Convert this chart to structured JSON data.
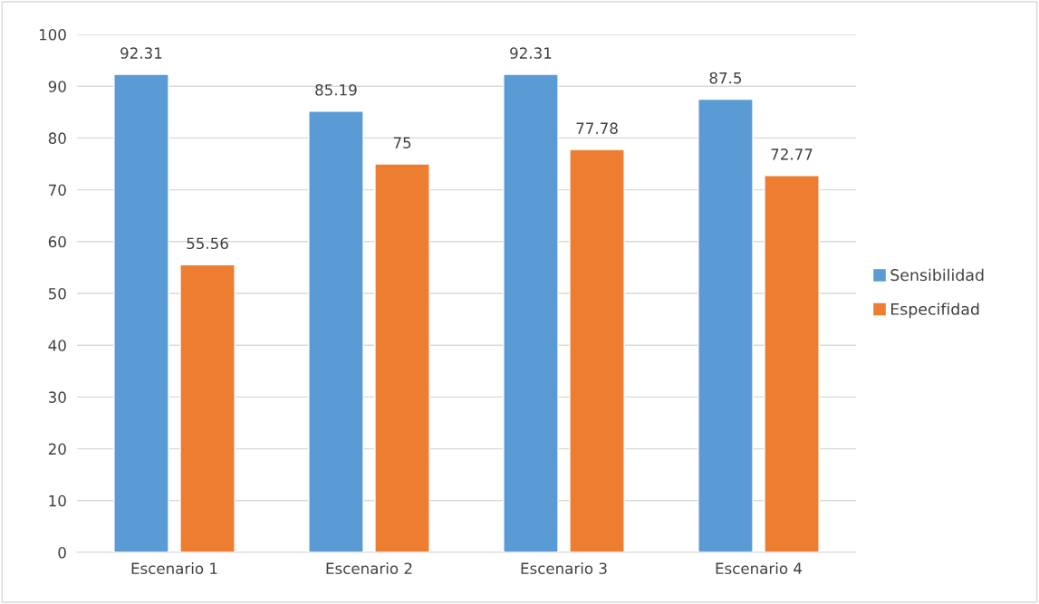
{
  "chart_data": {
    "type": "bar",
    "categories": [
      "Escenario 1",
      "Escenario 2",
      "Escenario 3",
      "Escenario 4"
    ],
    "series": [
      {
        "name": "Sensibilidad",
        "color": "#5b9bd5",
        "values": [
          92.31,
          85.19,
          92.31,
          87.5
        ]
      },
      {
        "name": "Especifidad",
        "color": "#ed7d31",
        "values": [
          55.56,
          75,
          77.78,
          72.77
        ]
      }
    ],
    "ylim": [
      0,
      100
    ],
    "yticks": [
      0,
      10,
      20,
      30,
      40,
      50,
      60,
      70,
      80,
      90,
      100
    ],
    "grid": "y",
    "legend": "right",
    "data_labels": true
  }
}
